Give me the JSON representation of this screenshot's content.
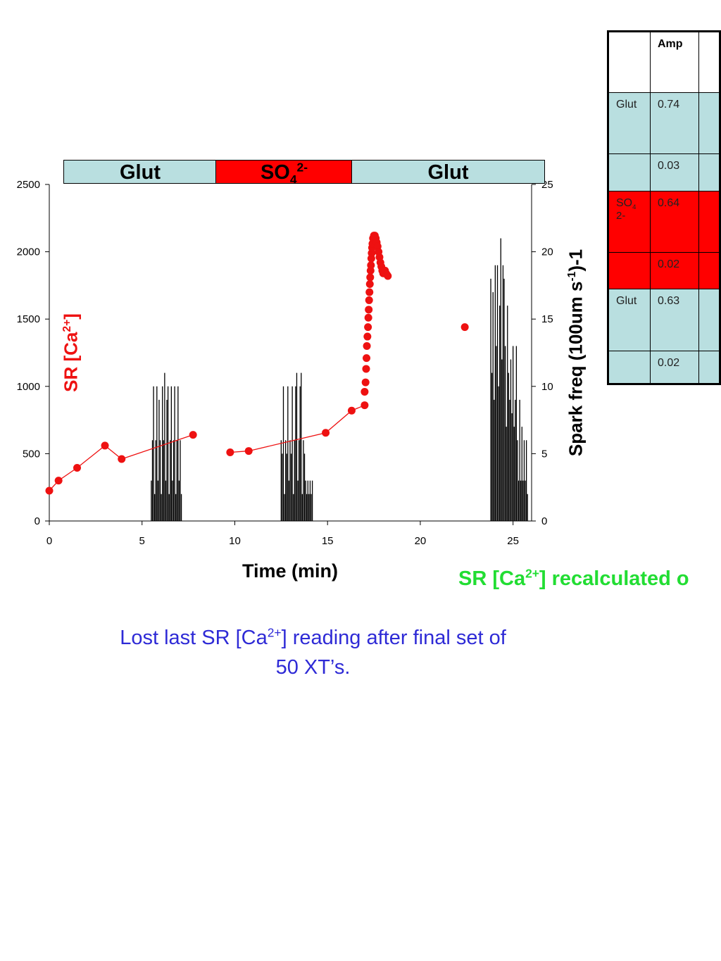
{
  "chart_data": {
    "type": "bar+scatter",
    "xlabel": "Time (min)",
    "ylabel_left": "SR [Ca2+]",
    "ylabel_right": "Spark freq (100um s-1)-1",
    "xlim": [
      0,
      26
    ],
    "ylim_left": [
      0,
      2500
    ],
    "ylim_right": [
      0,
      25
    ],
    "x_ticks": [
      0,
      5,
      10,
      15,
      20,
      25
    ],
    "y_ticks_left": [
      0,
      500,
      1000,
      1500,
      2000,
      2500
    ],
    "y_ticks_right": [
      0,
      5,
      10,
      15,
      20,
      25
    ],
    "solution_bars": [
      {
        "label": "Glut",
        "color": "#b9dfe0"
      },
      {
        "label": "SO4 2-",
        "color": "#ff0000"
      },
      {
        "label": "Glut",
        "color": "#b9dfe0"
      }
    ],
    "series": [
      {
        "name": "SR [Ca2+]",
        "axis": "left",
        "style": "line+marker",
        "color": "#ee1111",
        "segments": [
          {
            "x": [
              0,
              0.5,
              1.5,
              3.0,
              3.9,
              7.75
            ],
            "y": [
              225,
              300,
              395,
              560,
              460,
              640
            ]
          },
          {
            "x": [
              9.75,
              10.75,
              14.9,
              16.3,
              17.0
            ],
            "y": [
              510,
              520,
              655,
              820,
              860
            ]
          }
        ],
        "scatter": {
          "x": [
            17.0,
            17.05,
            17.08,
            17.1,
            17.12,
            17.15,
            17.18,
            17.2,
            17.22,
            17.24,
            17.26,
            17.28,
            17.3,
            17.32,
            17.34,
            17.36,
            17.38,
            17.4,
            17.42,
            17.45,
            17.5,
            17.55,
            17.6,
            17.65,
            17.7,
            17.75,
            17.8,
            17.85,
            17.9,
            17.95,
            18.0,
            18.05,
            18.1,
            18.15,
            18.2,
            18.25,
            22.4
          ],
          "y": [
            960,
            1030,
            1130,
            1210,
            1300,
            1370,
            1440,
            1510,
            1570,
            1640,
            1700,
            1760,
            1810,
            1860,
            1900,
            1950,
            1990,
            2030,
            2060,
            2100,
            2120,
            2120,
            2100,
            2070,
            2040,
            2000,
            1960,
            1920,
            1890,
            1860,
            1840,
            1850,
            1860,
            1840,
            1830,
            1820,
            1440
          ]
        }
      },
      {
        "name": "Spark freq",
        "axis": "right",
        "style": "bar",
        "color": "#000000",
        "bursts": [
          {
            "x": [
              5.5,
              5.56,
              5.62,
              5.68,
              5.74,
              5.8,
              5.86,
              5.92,
              5.98,
              6.04,
              6.1,
              6.16,
              6.22,
              6.28,
              6.34,
              6.4,
              6.46,
              6.52,
              6.58,
              6.64,
              6.7,
              6.76,
              6.82,
              6.88,
              6.94,
              7.0,
              7.06,
              7.12
            ],
            "y": [
              3,
              6,
              10,
              2,
              6,
              10,
              3,
              9,
              6,
              2,
              10,
              6,
              11,
              3,
              9,
              10,
              2,
              6,
              10,
              3,
              6,
              10,
              2,
              6,
              10,
              3,
              6,
              2
            ]
          },
          {
            "x": [
              12.5,
              12.56,
              12.62,
              12.68,
              12.74,
              12.8,
              12.86,
              12.92,
              12.98,
              13.04,
              13.1,
              13.16,
              13.22,
              13.28,
              13.34,
              13.4,
              13.46,
              13.52,
              13.58,
              13.64,
              13.7,
              13.76,
              13.82,
              13.88,
              13.94,
              14.0,
              14.06,
              14.12,
              14.18
            ],
            "y": [
              6,
              5,
              10,
              2,
              6,
              5,
              10,
              3,
              6,
              5,
              10,
              2,
              6,
              10,
              11,
              3,
              6,
              10,
              11,
              2,
              6,
              5,
              3,
              2,
              3,
              2,
              3,
              2,
              3
            ]
          },
          {
            "x": [
              23.8,
              23.86,
              23.92,
              23.98,
              24.04,
              24.1,
              24.16,
              24.22,
              24.28,
              24.34,
              24.4,
              24.46,
              24.52,
              24.58,
              24.64,
              24.7,
              24.76,
              24.82,
              24.88,
              24.94,
              25.0,
              25.06,
              25.12,
              25.18,
              25.24,
              25.3,
              25.36,
              25.42,
              25.48,
              25.54,
              25.6,
              25.66,
              25.72,
              25.78
            ],
            "y": [
              18,
              11,
              17,
              9,
              19,
              13,
              19,
              10,
              16,
              21,
              12,
              19,
              18,
              13,
              7,
              16,
              11,
              9,
              12,
              8,
              13,
              7,
              9,
              13,
              6,
              3,
              9,
              3,
              7,
              3,
              6,
              3,
              6,
              2
            ]
          }
        ]
      }
    ]
  },
  "labels": {
    "bar_glut_1": "Glut",
    "bar_so4_base": "SO",
    "bar_so4_sub": "4",
    "bar_so4_sup": "2-",
    "bar_glut_2": "Glut",
    "ylabel_left_main": "SR [Ca",
    "ylabel_left_sup": "2+",
    "ylabel_left_end": "]",
    "ylabel_right_main": "Spark freq (100um s",
    "ylabel_right_sup": "-1",
    "ylabel_right_end": ")-1",
    "xlabel": "Time (min)"
  },
  "annotations": {
    "green_main": "SR [Ca",
    "green_sup": "2+",
    "green_end": "] recalculated o",
    "blue_line1_pre": "Lost last SR [Ca",
    "blue_line1_sup": "2+",
    "blue_line1_post": "] reading after final set of",
    "blue_line2": "50 XT’s."
  },
  "table": {
    "header": {
      "c0": "",
      "c1": "Amp",
      "c2": ""
    },
    "rows": [
      {
        "label": "Glut",
        "amp": "0.74",
        "bg": "glut"
      },
      {
        "label": "",
        "amp": "0.03",
        "bg": "glut"
      },
      {
        "label_base": "SO",
        "label_sub": "4",
        "label_sup": "2-",
        "amp": "0.64",
        "bg": "so4"
      },
      {
        "label": "",
        "amp": "0.02",
        "bg": "so4"
      },
      {
        "label": "Glut",
        "amp": "0.63",
        "bg": "glut"
      },
      {
        "label": "",
        "amp": "0.02",
        "bg": "glut"
      }
    ]
  }
}
